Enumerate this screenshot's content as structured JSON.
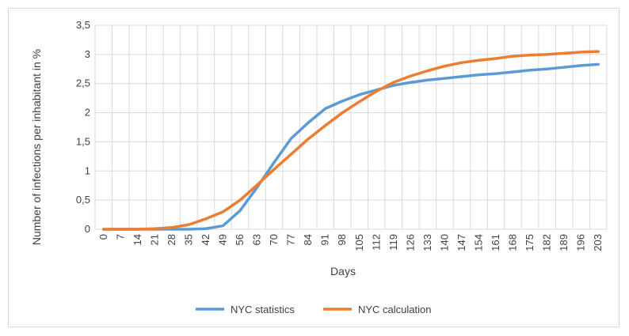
{
  "chart_data": {
    "type": "line",
    "xlabel": "Days",
    "ylabel": "Number of infections per inhabitant in %",
    "ylim": [
      0,
      3.5
    ],
    "yticks": [
      "0",
      "0,5",
      "1",
      "1,5",
      "2",
      "2,5",
      "3",
      "3,5"
    ],
    "x": [
      0,
      7,
      14,
      21,
      28,
      35,
      42,
      49,
      56,
      63,
      70,
      77,
      84,
      91,
      98,
      105,
      112,
      119,
      126,
      133,
      140,
      147,
      154,
      161,
      168,
      175,
      182,
      189,
      196,
      203
    ],
    "grid": true,
    "legend_position": "bottom",
    "series": [
      {
        "name": "NYC statistics",
        "color": "#5b9bd5",
        "values": [
          0,
          0,
          0,
          0,
          0,
          0,
          0.01,
          0.06,
          0.32,
          0.72,
          1.15,
          1.56,
          1.83,
          2.07,
          2.2,
          2.31,
          2.39,
          2.47,
          2.52,
          2.56,
          2.59,
          2.62,
          2.65,
          2.67,
          2.7,
          2.73,
          2.75,
          2.78,
          2.81,
          2.83
        ]
      },
      {
        "name": "NYC calculation",
        "color": "#ed7d31",
        "values": [
          0,
          0,
          0,
          0.01,
          0.03,
          0.08,
          0.18,
          0.3,
          0.5,
          0.76,
          1.03,
          1.29,
          1.55,
          1.78,
          2.0,
          2.19,
          2.37,
          2.52,
          2.63,
          2.72,
          2.8,
          2.86,
          2.9,
          2.93,
          2.97,
          2.99,
          3.0,
          3.02,
          3.04,
          3.05
        ]
      }
    ]
  }
}
